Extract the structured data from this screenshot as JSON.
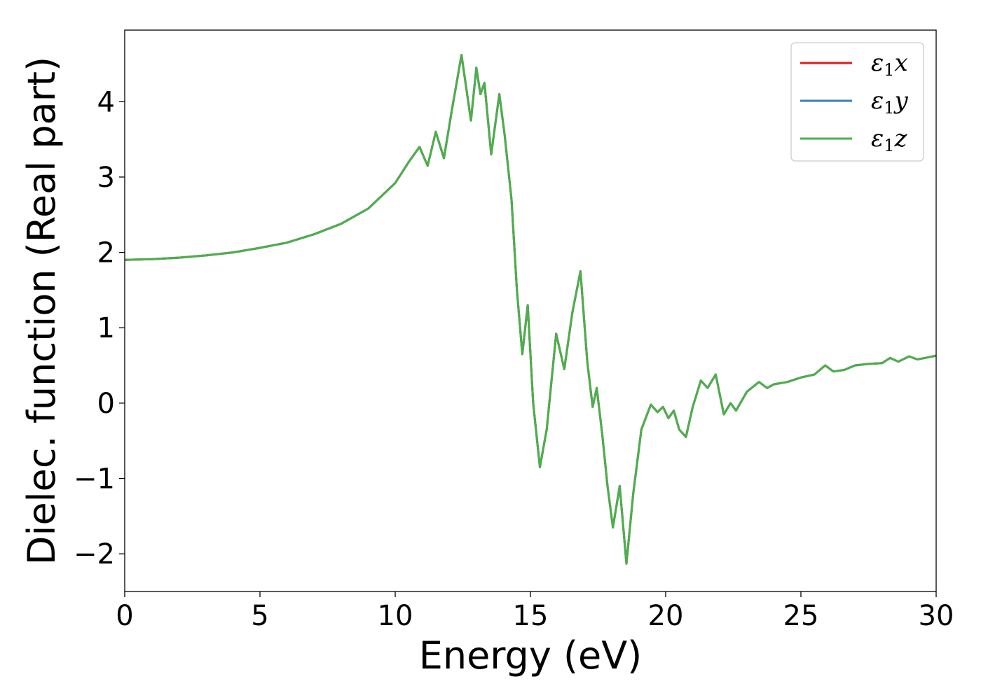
{
  "chart_data": {
    "type": "line",
    "xlabel": "Energy (eV)",
    "ylabel": "Dielec. function (Real part)",
    "xlim": [
      0,
      30
    ],
    "ylim": [
      -2.5,
      4.95
    ],
    "xticks": [
      "0",
      "5",
      "10",
      "15",
      "20",
      "25",
      "30"
    ],
    "yticks": [
      "−2",
      "−1",
      "0",
      "1",
      "2",
      "3",
      "4"
    ],
    "grid": false,
    "legend_position": "top-right",
    "series": [
      {
        "name": "ε1x",
        "color": "#e41a1c",
        "x": [
          0,
          1,
          2,
          3,
          4,
          5,
          6,
          7,
          8,
          9,
          10,
          10.5,
          10.9,
          11.2,
          11.5,
          11.8,
          12.1,
          12.45,
          12.8,
          13.0,
          13.15,
          13.3,
          13.55,
          13.85,
          14.05,
          14.3,
          14.5,
          14.7,
          14.9,
          15.1,
          15.35,
          15.6,
          15.95,
          16.25,
          16.55,
          16.85,
          17.1,
          17.3,
          17.45,
          17.65,
          17.85,
          18.05,
          18.3,
          18.55,
          18.8,
          19.1,
          19.45,
          19.7,
          19.9,
          20.1,
          20.3,
          20.5,
          20.75,
          21.0,
          21.3,
          21.55,
          21.85,
          22.15,
          22.4,
          22.6,
          23.0,
          23.45,
          23.75,
          24.0,
          24.5,
          25.0,
          25.5,
          25.9,
          26.2,
          26.6,
          27.0,
          27.5,
          28.0,
          28.3,
          28.6,
          29.0,
          29.3,
          29.6,
          30.0
        ],
        "values": [
          1.9,
          1.91,
          1.93,
          1.96,
          2.0,
          2.06,
          2.13,
          2.24,
          2.38,
          2.58,
          2.92,
          3.2,
          3.4,
          3.15,
          3.6,
          3.25,
          3.9,
          4.62,
          3.75,
          4.45,
          4.1,
          4.25,
          3.3,
          4.1,
          3.55,
          2.7,
          1.5,
          0.65,
          1.3,
          0.0,
          -0.85,
          -0.35,
          0.92,
          0.45,
          1.2,
          1.75,
          0.55,
          -0.05,
          0.2,
          -0.4,
          -1.1,
          -1.65,
          -1.1,
          -2.13,
          -1.2,
          -0.35,
          -0.02,
          -0.12,
          -0.05,
          -0.2,
          -0.1,
          -0.35,
          -0.45,
          -0.05,
          0.3,
          0.2,
          0.38,
          -0.15,
          0.0,
          -0.1,
          0.15,
          0.28,
          0.2,
          0.25,
          0.28,
          0.34,
          0.38,
          0.5,
          0.42,
          0.44,
          0.5,
          0.52,
          0.53,
          0.6,
          0.55,
          0.62,
          0.58,
          0.6,
          0.63
        ]
      },
      {
        "name": "ε1y",
        "color": "#377eb8",
        "x": [
          0,
          1,
          2,
          3,
          4,
          5,
          6,
          7,
          8,
          9,
          10,
          10.5,
          10.9,
          11.2,
          11.5,
          11.8,
          12.1,
          12.45,
          12.8,
          13.0,
          13.15,
          13.3,
          13.55,
          13.85,
          14.05,
          14.3,
          14.5,
          14.7,
          14.9,
          15.1,
          15.35,
          15.6,
          15.95,
          16.25,
          16.55,
          16.85,
          17.1,
          17.3,
          17.45,
          17.65,
          17.85,
          18.05,
          18.3,
          18.55,
          18.8,
          19.1,
          19.45,
          19.7,
          19.9,
          20.1,
          20.3,
          20.5,
          20.75,
          21.0,
          21.3,
          21.55,
          21.85,
          22.15,
          22.4,
          22.6,
          23.0,
          23.45,
          23.75,
          24.0,
          24.5,
          25.0,
          25.5,
          25.9,
          26.2,
          26.6,
          27.0,
          27.5,
          28.0,
          28.3,
          28.6,
          29.0,
          29.3,
          29.6,
          30.0
        ],
        "values": [
          1.9,
          1.91,
          1.93,
          1.96,
          2.0,
          2.06,
          2.13,
          2.24,
          2.38,
          2.58,
          2.92,
          3.2,
          3.4,
          3.15,
          3.6,
          3.25,
          3.9,
          4.62,
          3.75,
          4.45,
          4.1,
          4.25,
          3.3,
          4.1,
          3.55,
          2.7,
          1.5,
          0.65,
          1.3,
          0.0,
          -0.85,
          -0.35,
          0.92,
          0.45,
          1.2,
          1.75,
          0.55,
          -0.05,
          0.2,
          -0.4,
          -1.1,
          -1.65,
          -1.1,
          -2.13,
          -1.2,
          -0.35,
          -0.02,
          -0.12,
          -0.05,
          -0.2,
          -0.1,
          -0.35,
          -0.45,
          -0.05,
          0.3,
          0.2,
          0.38,
          -0.15,
          0.0,
          -0.1,
          0.15,
          0.28,
          0.2,
          0.25,
          0.28,
          0.34,
          0.38,
          0.5,
          0.42,
          0.44,
          0.5,
          0.52,
          0.53,
          0.6,
          0.55,
          0.62,
          0.58,
          0.6,
          0.63
        ]
      },
      {
        "name": "ε1z",
        "color": "#4daf4a",
        "x": [
          0,
          1,
          2,
          3,
          4,
          5,
          6,
          7,
          8,
          9,
          10,
          10.5,
          10.9,
          11.2,
          11.5,
          11.8,
          12.1,
          12.45,
          12.8,
          13.0,
          13.15,
          13.3,
          13.55,
          13.85,
          14.05,
          14.3,
          14.5,
          14.7,
          14.9,
          15.1,
          15.35,
          15.6,
          15.95,
          16.25,
          16.55,
          16.85,
          17.1,
          17.3,
          17.45,
          17.65,
          17.85,
          18.05,
          18.3,
          18.55,
          18.8,
          19.1,
          19.45,
          19.7,
          19.9,
          20.1,
          20.3,
          20.5,
          20.75,
          21.0,
          21.3,
          21.55,
          21.85,
          22.15,
          22.4,
          22.6,
          23.0,
          23.45,
          23.75,
          24.0,
          24.5,
          25.0,
          25.5,
          25.9,
          26.2,
          26.6,
          27.0,
          27.5,
          28.0,
          28.3,
          28.6,
          29.0,
          29.3,
          29.6,
          30.0
        ],
        "values": [
          1.9,
          1.91,
          1.93,
          1.96,
          2.0,
          2.06,
          2.13,
          2.24,
          2.38,
          2.58,
          2.92,
          3.2,
          3.4,
          3.15,
          3.6,
          3.25,
          3.9,
          4.62,
          3.75,
          4.45,
          4.1,
          4.25,
          3.3,
          4.1,
          3.55,
          2.7,
          1.5,
          0.65,
          1.3,
          0.0,
          -0.85,
          -0.35,
          0.92,
          0.45,
          1.2,
          1.75,
          0.55,
          -0.05,
          0.2,
          -0.4,
          -1.1,
          -1.65,
          -1.1,
          -2.13,
          -1.2,
          -0.35,
          -0.02,
          -0.12,
          -0.05,
          -0.2,
          -0.1,
          -0.35,
          -0.45,
          -0.05,
          0.3,
          0.2,
          0.38,
          -0.15,
          0.0,
          -0.1,
          0.15,
          0.28,
          0.2,
          0.25,
          0.28,
          0.34,
          0.38,
          0.5,
          0.42,
          0.44,
          0.5,
          0.52,
          0.53,
          0.6,
          0.55,
          0.62,
          0.58,
          0.6,
          0.63
        ]
      }
    ]
  }
}
